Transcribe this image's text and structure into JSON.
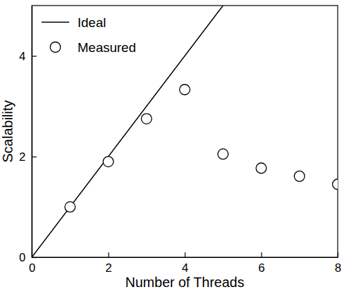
{
  "chart_data": {
    "type": "scatter",
    "x_label": "Number of Threads",
    "y_label": "Scalability",
    "xlim": [
      0,
      8
    ],
    "xticks": [
      0,
      2,
      4,
      6,
      8
    ],
    "ylim": [
      0,
      5
    ],
    "yticks": [
      0,
      2,
      4
    ],
    "legend": "upper left",
    "series": [
      {
        "name": "Ideal",
        "type": "line",
        "color": "#000000",
        "line_style": "solid",
        "x": [
          0,
          5
        ],
        "values": [
          0,
          5
        ]
      },
      {
        "name": "Measured",
        "type": "scatter",
        "color": "#000000",
        "marker": "circle",
        "x": [
          1,
          2,
          3,
          4,
          5,
          6,
          7,
          8
        ],
        "values": [
          1.0,
          1.9,
          2.75,
          3.33,
          2.05,
          1.77,
          1.61,
          1.45
        ]
      }
    ]
  }
}
